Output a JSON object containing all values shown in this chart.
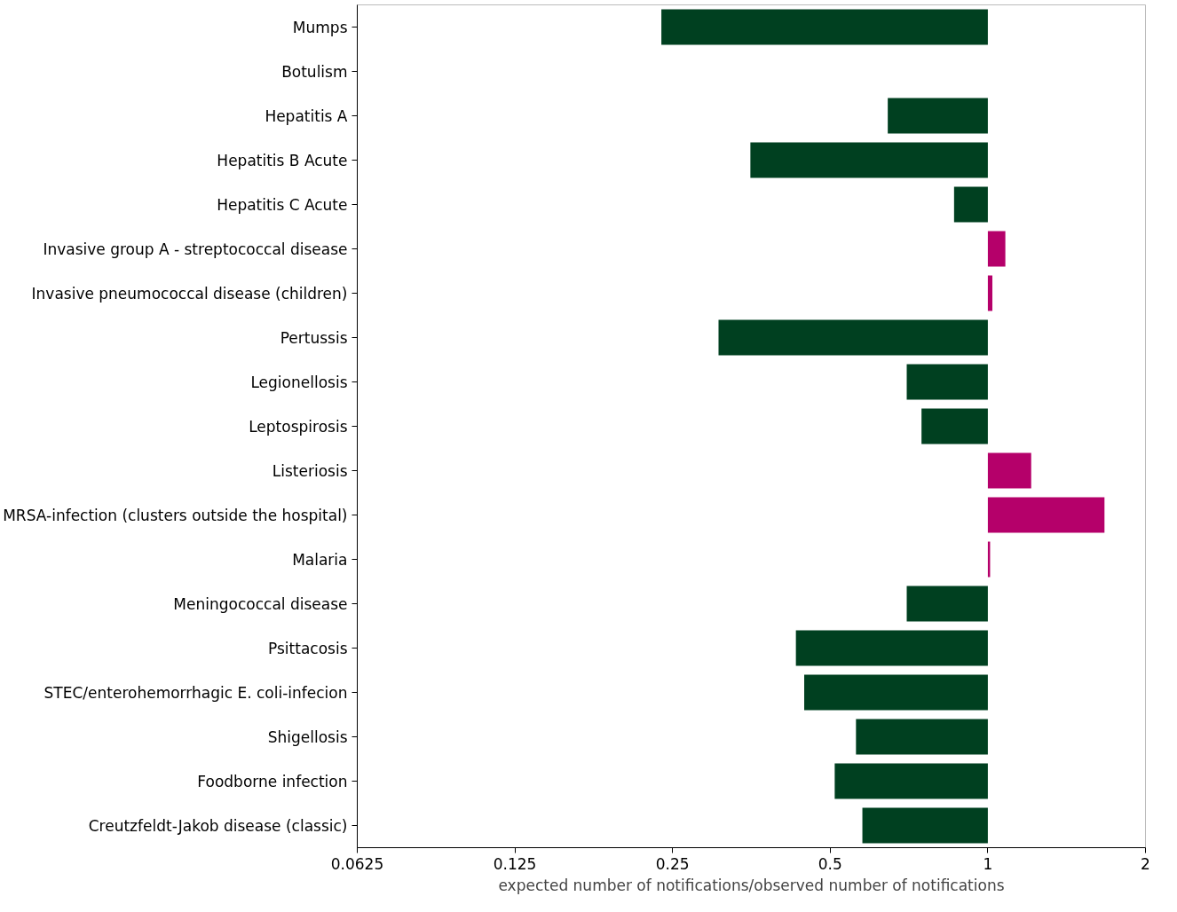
{
  "chart_data": {
    "type": "bar",
    "orientation": "horizontal",
    "log": "x",
    "xlabel": "expected number of notifications/observed number of notifications",
    "categories": [
      "Mumps",
      "Botulism",
      "Hepatitis A",
      "Hepatitis B Acute",
      "Hepatitis C Acute",
      "Invasive group A - streptococcal disease",
      "Invasive pneumococcal disease (children)",
      "Pertussis",
      "Legionellosis",
      "Leptospirosis",
      "Listeriosis",
      "MRSA-infection (clusters outside the hospital)",
      "Malaria",
      "Meningococcal disease",
      "Psittacosis",
      "STEC/enterohemorrhagic E. coli-infecion",
      "Shigellosis",
      "Foodborne infection",
      "Creutzfeldt-Jakob disease (classic)"
    ],
    "values": [
      -0.762,
      null,
      -0.356,
      -0.648,
      -0.138,
      0.08,
      0.02,
      -0.694,
      -0.3,
      -0.253,
      0.21,
      0.67,
      0.01,
      -0.3,
      -0.57,
      -0.554,
      -0.44,
      -0.49,
      -0.424
    ],
    "base": [
      1,
      null,
      1,
      1,
      1,
      1,
      1,
      1,
      1,
      1,
      1,
      1,
      1,
      1,
      1,
      1,
      1,
      1,
      1
    ],
    "colors": [
      "#004020",
      "#004020",
      "#004020",
      "#004020",
      "#004020",
      "#b5006a",
      "#b5006a",
      "#004020",
      "#004020",
      "#004020",
      "#b5006a",
      "#b5006a",
      "#b5006a",
      "#004020",
      "#004020",
      "#004020",
      "#004020",
      "#004020",
      "#004020"
    ],
    "xlim": [
      0.0625,
      2
    ],
    "xticks": [
      0.0625,
      0.125,
      0.25,
      0.5,
      1,
      2
    ],
    "grid": false
  }
}
